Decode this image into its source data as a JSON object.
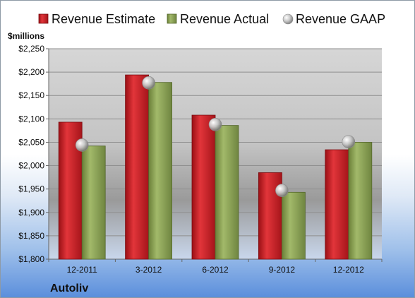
{
  "chart_data": {
    "type": "bar",
    "company": "Autoliv",
    "ylabel": "$millions",
    "categories": [
      "12-2011",
      "3-2012",
      "6-2012",
      "9-2012",
      "12-2012"
    ],
    "series": [
      {
        "name": "Revenue Estimate",
        "kind": "bar",
        "color": "#d42026",
        "values": [
          2093,
          2194,
          2108,
          1985,
          2034
        ]
      },
      {
        "name": "Revenue Actual",
        "kind": "bar",
        "color": "#8ea55a",
        "values": [
          2042,
          2178,
          2086,
          1943,
          2050
        ]
      },
      {
        "name": "Revenue GAAP",
        "kind": "marker",
        "color": "#c8c8c8",
        "values": [
          2044,
          2177,
          2088,
          1947,
          2051
        ]
      }
    ],
    "ylim": [
      1800,
      2250
    ],
    "yticks": [
      1800,
      1850,
      1900,
      1950,
      2000,
      2050,
      2100,
      2150,
      2200,
      2250
    ],
    "ytick_labels": [
      "$1,800",
      "$1,850",
      "$1,900",
      "$1,950",
      "$2,000",
      "$2,050",
      "$2,100",
      "$2,150",
      "$2,200",
      "$2,250"
    ],
    "grid": true,
    "legend_position": "top"
  }
}
